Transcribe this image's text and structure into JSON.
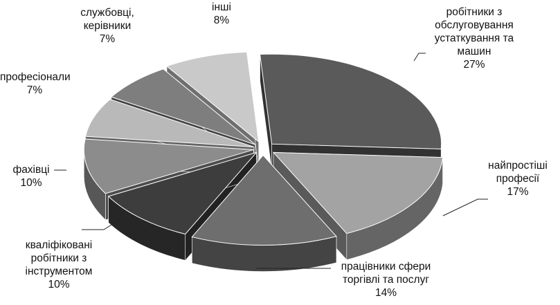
{
  "chart_data": {
    "type": "pie",
    "style": "3d-exploded",
    "categories": [
      "робітники з обслуговування устаткування та машин",
      "найпростіші професії",
      "працівники  сфери торгівлі та послуг",
      "кваліфіковані робітники з інструментом",
      "фахівці",
      "професіонали",
      "службовці, керівники",
      "інші"
    ],
    "values": [
      27,
      17,
      14,
      10,
      10,
      7,
      7,
      8
    ],
    "colors": [
      "#5a5a5a",
      "#a3a3a3",
      "#6e6e6e",
      "#3d3d3d",
      "#8c8c8c",
      "#b9b9b9",
      "#7e7e7e",
      "#c9c9c9"
    ],
    "labels": [
      {
        "lines": [
          "робітники з",
          "обслуговування",
          "устаткування та",
          "машин"
        ],
        "pct": "27%"
      },
      {
        "lines": [
          "найпростіші",
          "професії"
        ],
        "pct": "17%"
      },
      {
        "lines": [
          "працівники  сфери",
          "торгівлі та послуг"
        ],
        "pct": "14%"
      },
      {
        "lines": [
          "кваліфіковані",
          "робітники з",
          "інструментом"
        ],
        "pct": "10%"
      },
      {
        "lines": [
          "фахівці"
        ],
        "pct": "10%"
      },
      {
        "lines": [
          "професіонали"
        ],
        "pct": "7%"
      },
      {
        "lines": [
          "службовці,",
          "керівники"
        ],
        "pct": "7%"
      },
      {
        "lines": [
          "інші"
        ],
        "pct": "8%"
      }
    ]
  }
}
